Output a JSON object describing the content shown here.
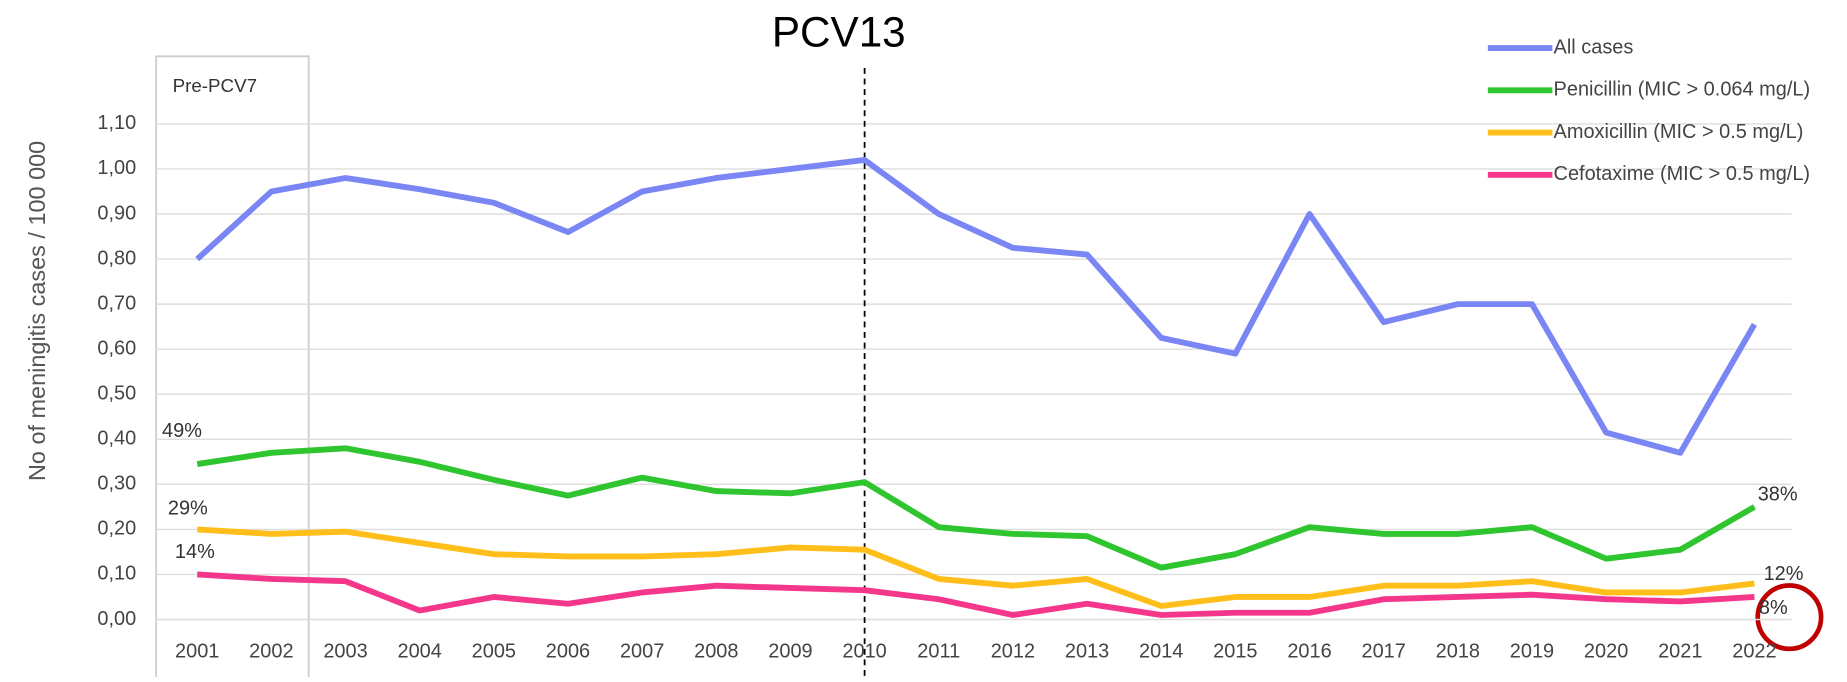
{
  "chart_data": {
    "type": "line",
    "y_label": "No of meningitis cases  / 100 000",
    "categories": [
      "2001",
      "2002",
      "2003",
      "2004",
      "2005",
      "2006",
      "2007",
      "2008",
      "2009",
      "2010",
      "2011",
      "2012",
      "2013",
      "2014",
      "2015",
      "2016",
      "2017",
      "2018",
      "2019",
      "2020",
      "2021",
      "2022"
    ],
    "series": [
      {
        "name": "All cases",
        "color": "#7b86f5",
        "values": [
          0.8,
          0.95,
          0.98,
          0.955,
          0.925,
          0.86,
          0.95,
          0.98,
          1.0,
          1.02,
          0.9,
          0.825,
          0.81,
          0.625,
          0.59,
          0.9,
          0.66,
          0.7,
          0.7,
          0.415,
          0.37,
          0.655
        ]
      },
      {
        "name": "Penicillin (MIC > 0.064 mg/L)",
        "color": "#2ec52e",
        "values": [
          0.345,
          0.37,
          0.38,
          0.35,
          0.31,
          0.275,
          0.315,
          0.285,
          0.28,
          0.305,
          0.205,
          0.19,
          0.185,
          0.115,
          0.145,
          0.205,
          0.19,
          0.19,
          0.205,
          0.135,
          0.155,
          0.25
        ]
      },
      {
        "name": "Amoxicillin (MIC > 0.5 mg/L)",
        "color": "#ffbe1a",
        "values": [
          0.2,
          0.19,
          0.195,
          0.17,
          0.145,
          0.14,
          0.14,
          0.145,
          0.16,
          0.155,
          0.09,
          0.075,
          0.09,
          0.03,
          0.05,
          0.05,
          0.075,
          0.075,
          0.085,
          0.06,
          0.06,
          0.08
        ]
      },
      {
        "name": "Cefotaxime (MIC > 0.5 mg/L)",
        "color": "#f5378c",
        "values": [
          0.1,
          0.09,
          0.085,
          0.02,
          0.05,
          0.035,
          0.06,
          0.075,
          0.07,
          0.065,
          0.045,
          0.01,
          0.035,
          0.01,
          0.015,
          0.015,
          0.045,
          0.05,
          0.055,
          0.045,
          0.04,
          0.05
        ]
      }
    ],
    "ylim": [
      -0.05,
      1.15
    ],
    "yticks": [
      {
        "value": 0,
        "label": "0,00"
      },
      {
        "value": 0.1,
        "label": "0,10"
      },
      {
        "value": 0.2,
        "label": "0,20"
      },
      {
        "value": 0.3,
        "label": "0,30"
      },
      {
        "value": 0.4,
        "label": "0,40"
      },
      {
        "value": 0.5,
        "label": "0,50"
      },
      {
        "value": 0.6,
        "label": "0,60"
      },
      {
        "value": 0.7,
        "label": "0,70"
      },
      {
        "value": 0.8,
        "label": "0,80"
      },
      {
        "value": 0.9,
        "label": "0,90"
      },
      {
        "value": 1.0,
        "label": "1,00"
      },
      {
        "value": 1.1,
        "label": "1,10"
      }
    ],
    "grid": true,
    "legend": "top-right",
    "region_label": "Pre-PCV7",
    "vline": {
      "label": "PCV13",
      "category": "2010"
    },
    "annotations": [
      "49%",
      "29%",
      "14%",
      "38%",
      "12%",
      "8%"
    ]
  }
}
